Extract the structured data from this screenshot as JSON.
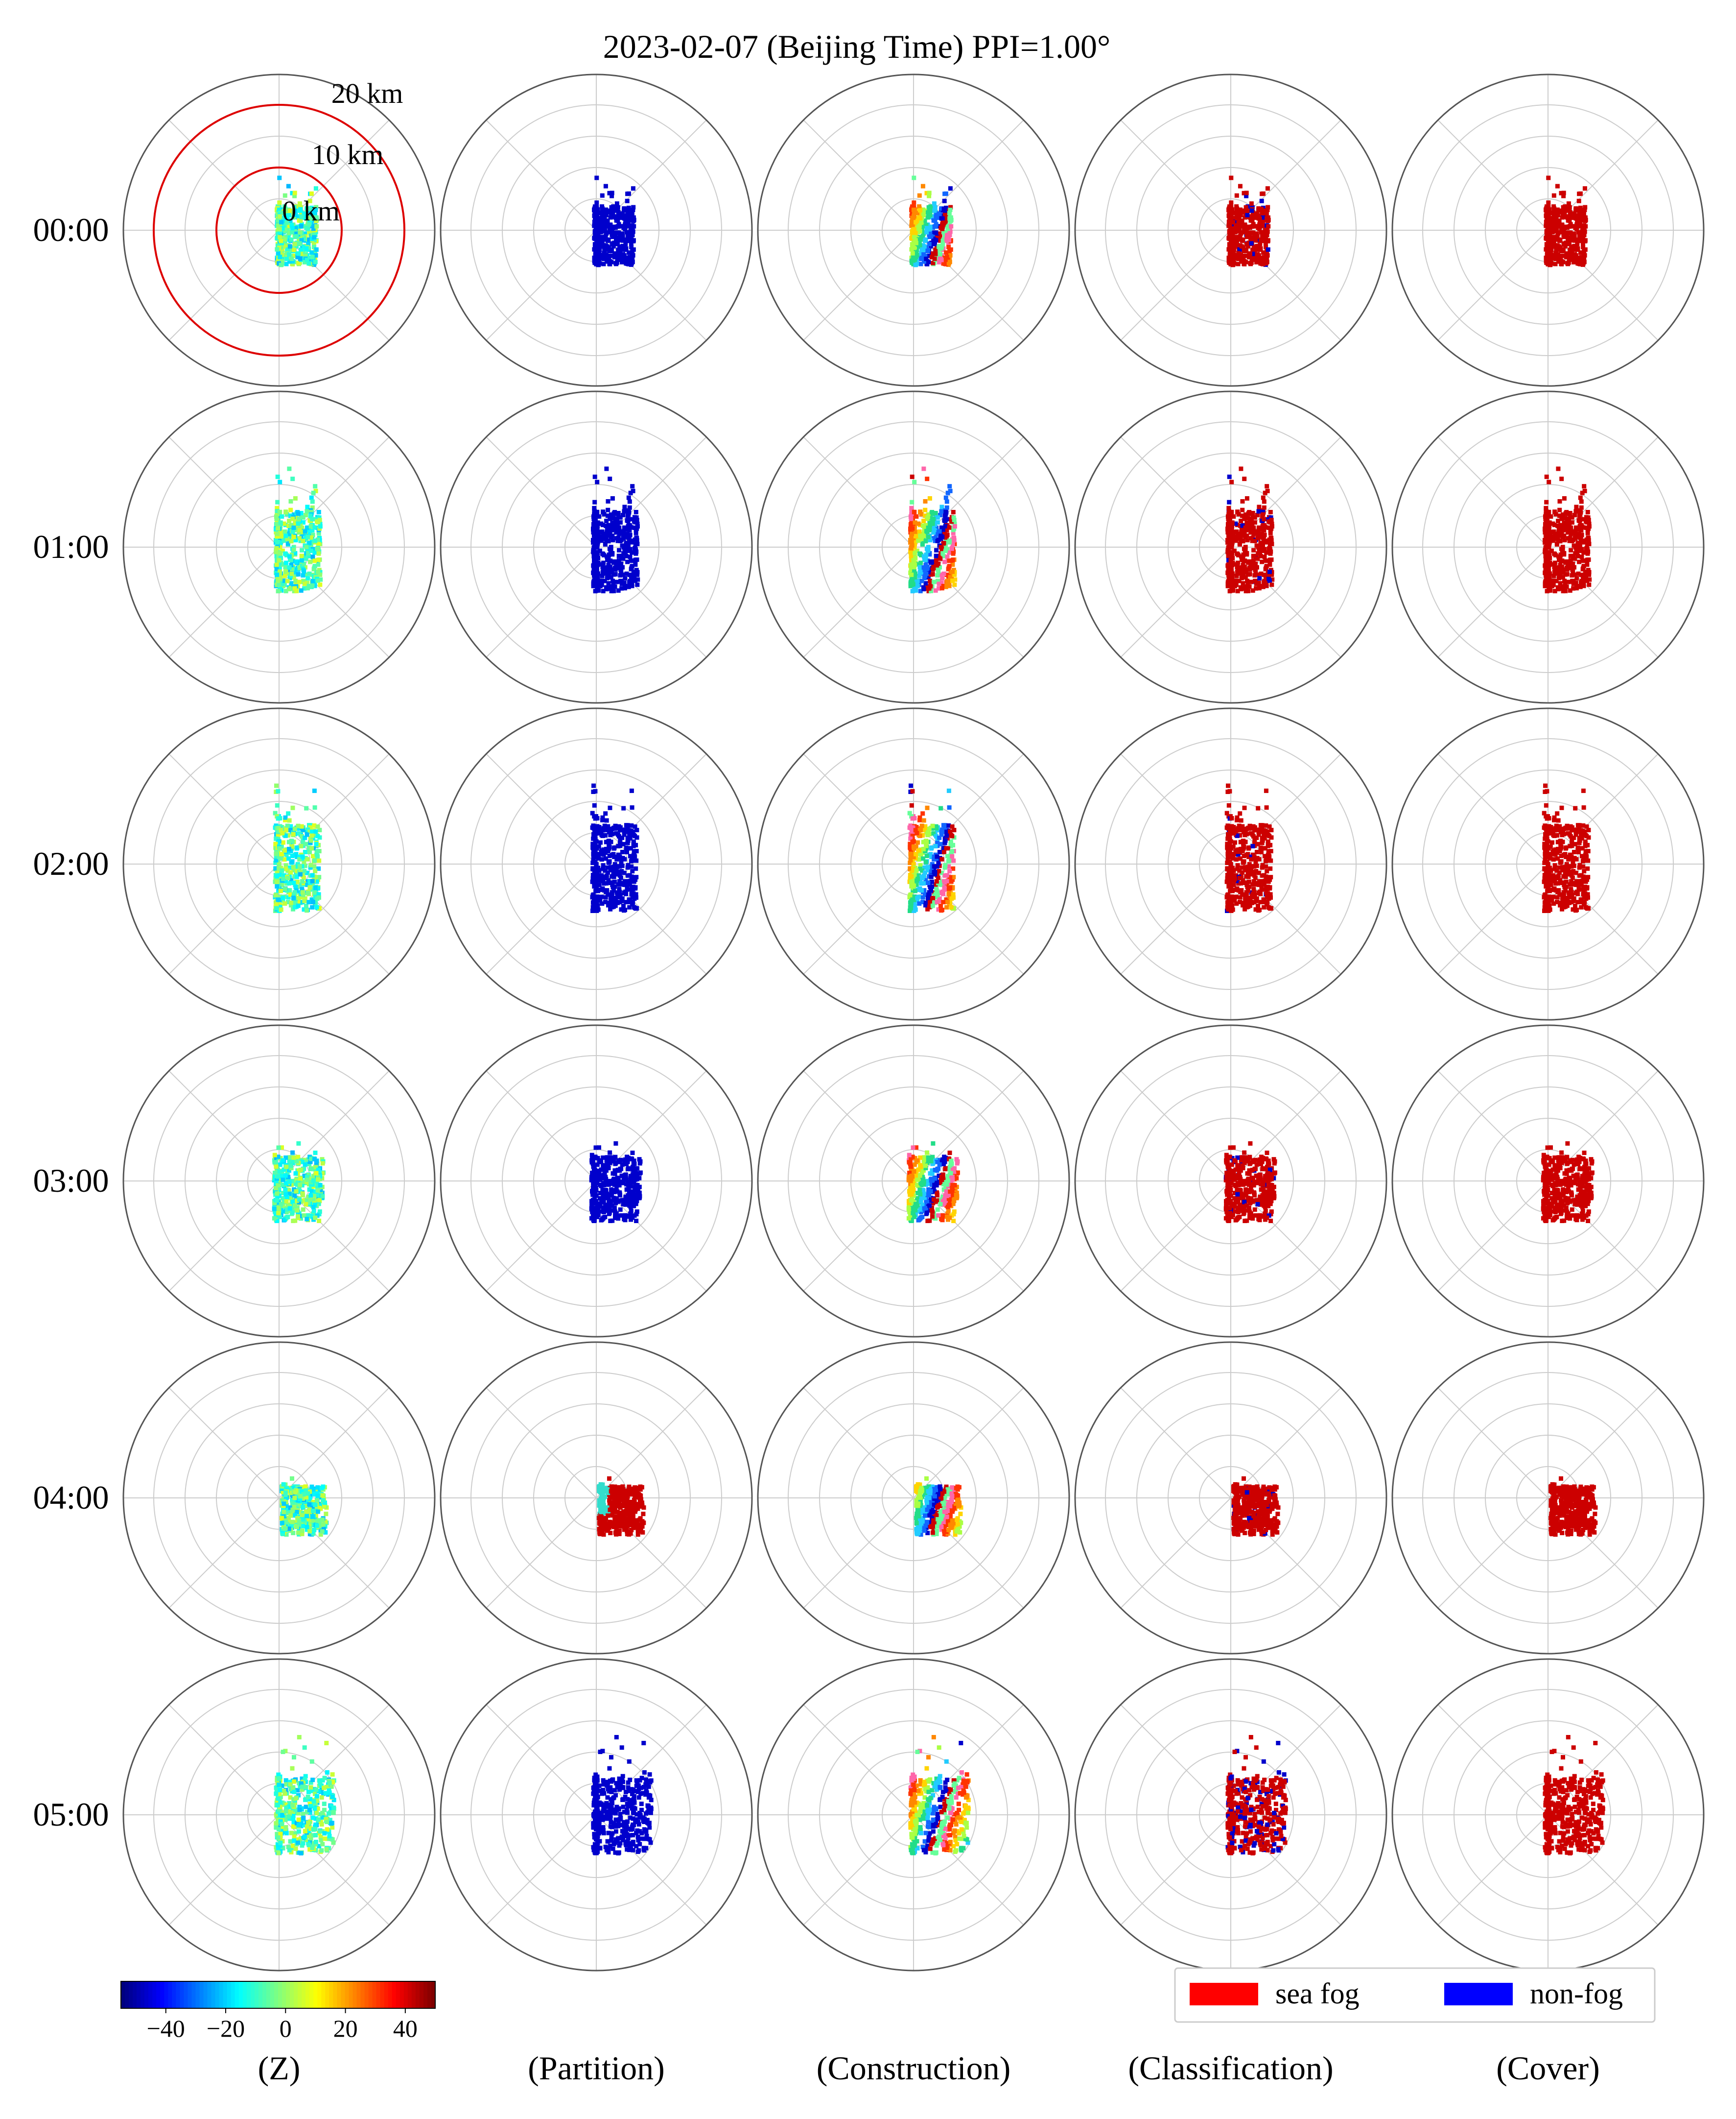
{
  "chart_data": {
    "type": "polar-radar-ppi-grid",
    "title": "2023-02-07 (Beijing Time) PPI=1.00°",
    "rows": [
      "00:00",
      "01:00",
      "02:00",
      "03:00",
      "04:00",
      "05:00"
    ],
    "columns": [
      "(Z)",
      "(Partition)",
      "(Construction)",
      "(Classification)",
      "(Cover)"
    ],
    "range_ring_labels": [
      "0 km",
      "10 km",
      "20 km"
    ],
    "grid": true,
    "colorbar": {
      "label": "",
      "ticks": [
        "−40",
        "−20",
        "0",
        "20",
        "40"
      ],
      "tick_values": [
        -40,
        -20,
        0,
        20,
        40
      ],
      "range": [
        -55,
        50
      ],
      "colormap": "jet"
    },
    "legend": {
      "placement": "bottom-right",
      "items": [
        {
          "label": "sea fog",
          "color": "#ff0000"
        },
        {
          "label": "non-fog",
          "color": "#0000ff"
        }
      ]
    },
    "colors": {
      "partition": "#0000cc",
      "sea_fog": "#cc0000",
      "non_fog": "#0000cc",
      "grid": "#cccccc",
      "frame": "#555555",
      "range_ring": "#dd0000"
    }
  }
}
